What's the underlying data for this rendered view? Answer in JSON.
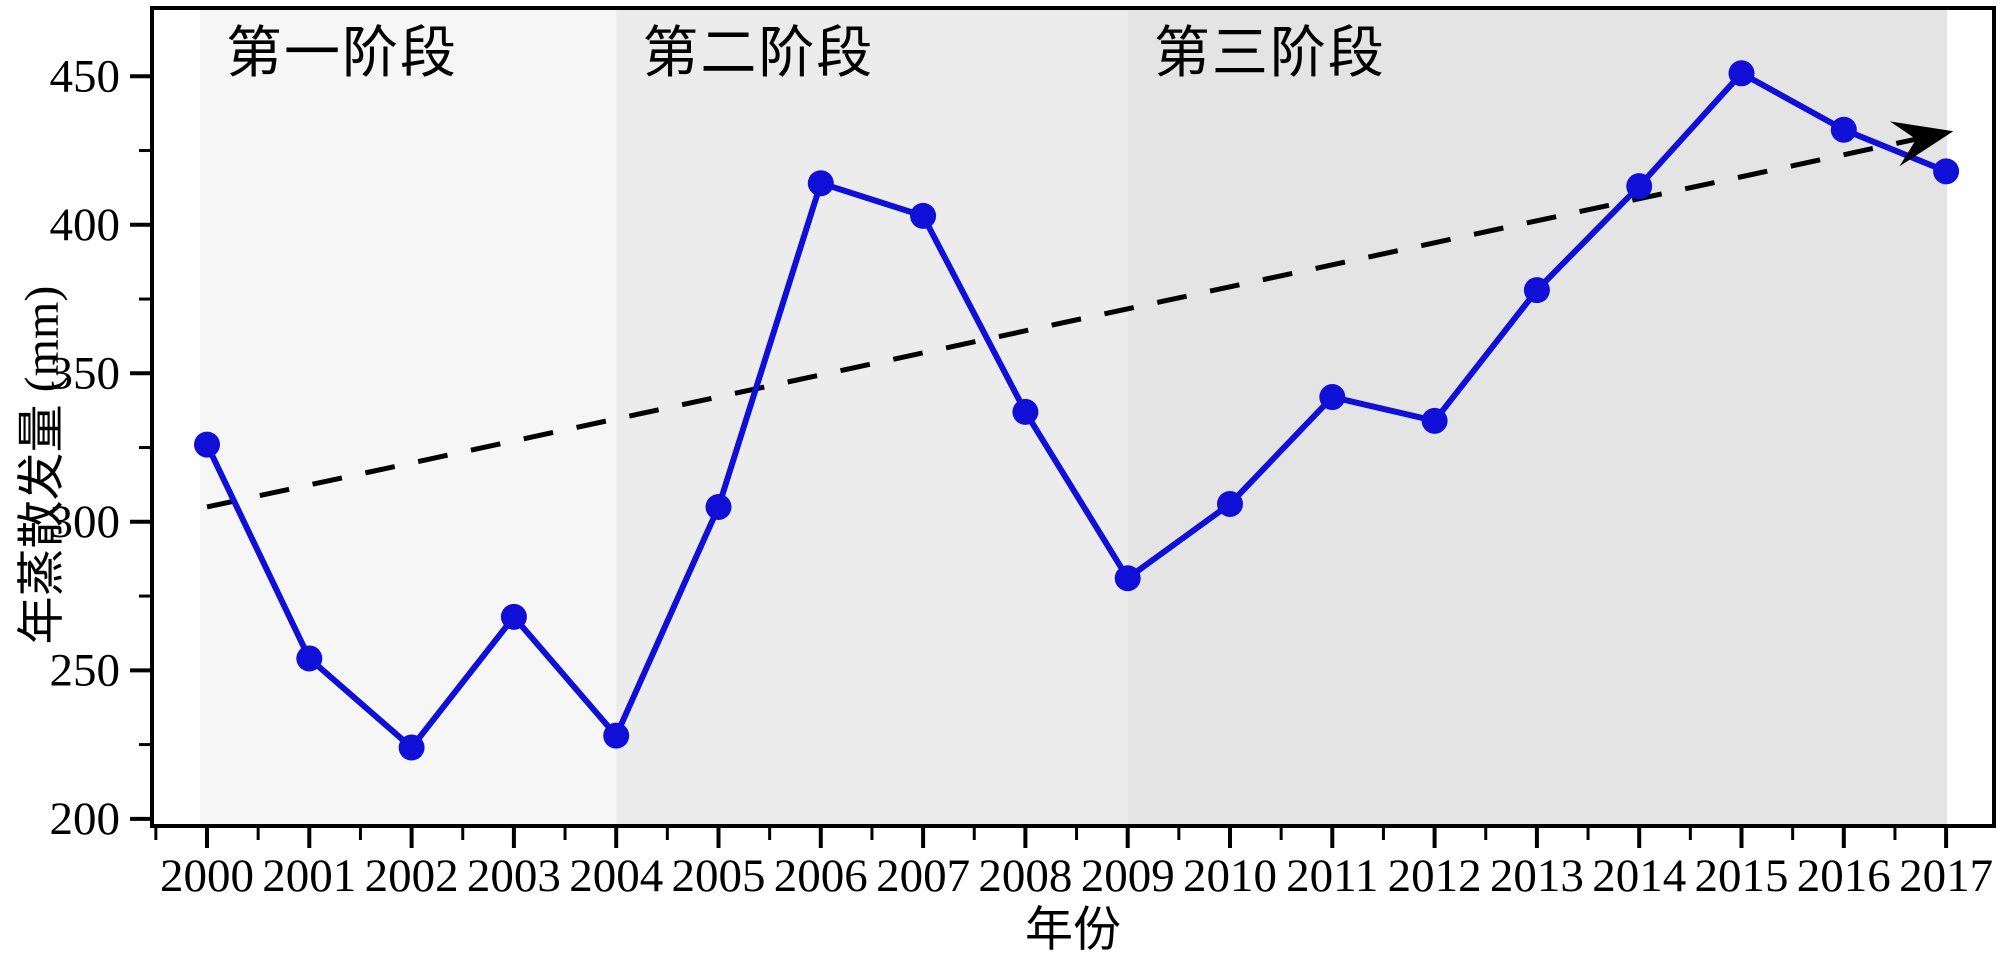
{
  "figure": {
    "background": "#ffffff",
    "frame_color": "#000000",
    "x_axis_title": "年份",
    "y_axis_title": "年蒸散发量 (mm)"
  },
  "stages": [
    {
      "label": "第一阶段",
      "from_year": 2000,
      "to_year": 2004,
      "fill": "#f6f6f6",
      "label_center_year": 2001.32
    },
    {
      "label": "第二阶段",
      "from_year": 2004,
      "to_year": 2009,
      "fill": "#ececec",
      "label_center_year": 2005.39
    },
    {
      "label": "第三阶段",
      "from_year": 2009,
      "to_year": 2017,
      "fill": "#e4e4e4",
      "label_center_year": 2010.39
    }
  ],
  "chart_data": {
    "type": "line",
    "title": "",
    "xlabel": "年份",
    "ylabel": "年蒸散发量 (mm)",
    "x": [
      2000,
      2001,
      2002,
      2003,
      2004,
      2005,
      2006,
      2007,
      2008,
      2009,
      2010,
      2011,
      2012,
      2013,
      2014,
      2015,
      2016,
      2017
    ],
    "series": [
      {
        "name": "年蒸散发量",
        "color": "#0f0fd8",
        "marker": "circle",
        "values": [
          326,
          254,
          224,
          268,
          228,
          305,
          414,
          403,
          337,
          281,
          306,
          342,
          334,
          378,
          413,
          451,
          432,
          418
        ]
      }
    ],
    "trend": {
      "style": "dashed",
      "color": "#000000",
      "start_year": 2000,
      "start_value": 305,
      "end_year": 2017,
      "end_value": 431,
      "arrow": true
    },
    "ylim": [
      200,
      475
    ],
    "yticks": [
      200,
      250,
      300,
      350,
      400,
      450
    ],
    "ytick_minor_step": 25,
    "xticks": [
      2000,
      2001,
      2002,
      2003,
      2004,
      2005,
      2006,
      2007,
      2008,
      2009,
      2010,
      2011,
      2012,
      2013,
      2014,
      2015,
      2016,
      2017
    ],
    "xtick_minor_step": 0.5,
    "grid": false,
    "legend": null
  }
}
